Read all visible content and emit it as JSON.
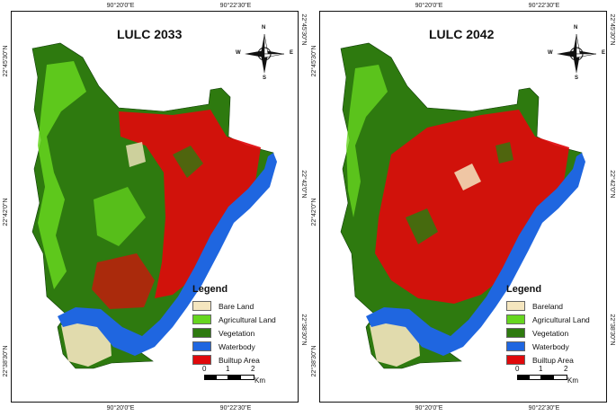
{
  "maps": [
    {
      "id": "left",
      "title": "LULC 2033",
      "top_ticks": [
        "90°20'0\"E",
        "90°22'30\"E"
      ],
      "bottom_ticks": [
        "90°20'0\"E",
        "90°22'30\"E"
      ],
      "left_ticks": [
        "22°45'30\"N",
        "22°42'0\"N",
        "22°38'30\"N"
      ],
      "right_ticks": [
        "22°45'30\"N",
        "22°42'0\"N",
        "22°38'30\"N"
      ],
      "compass": {
        "n": "N",
        "s": "S",
        "e": "E",
        "w": "W"
      },
      "legend": {
        "title": "Legend",
        "items": [
          {
            "label": "Bare Land",
            "color": "#f5e6bf"
          },
          {
            "label": "Agricultural Land",
            "color": "#66d61f"
          },
          {
            "label": "Vegetation",
            "color": "#2e7a0f"
          },
          {
            "label": "Waterbody",
            "color": "#1f66e0"
          },
          {
            "label": "Builtup Area",
            "color": "#e0090b"
          }
        ]
      },
      "scale": {
        "labels": [
          "0",
          "1",
          "2"
        ],
        "unit": "Km"
      }
    },
    {
      "id": "right",
      "title": "LULC 2042",
      "top_ticks": [
        "90°20'0\"E",
        "90°22'30\"E"
      ],
      "bottom_ticks": [
        "90°20'0\"E",
        "90°22'30\"E"
      ],
      "left_ticks": [
        "22°45'30\"N",
        "22°42'0\"N",
        "22°38'30\"N"
      ],
      "right_ticks": [
        "22°45'30\"N",
        "22°42'0\"N",
        "22°38'30\"N"
      ],
      "compass": {
        "n": "N",
        "s": "S",
        "e": "E",
        "w": "W"
      },
      "legend": {
        "title": "Legend",
        "items": [
          {
            "label": "Bareland",
            "color": "#f5e6bf"
          },
          {
            "label": "Agricultural Land",
            "color": "#66d61f"
          },
          {
            "label": "Vegetation",
            "color": "#2e7a0f"
          },
          {
            "label": "Waterbody",
            "color": "#1f66e0"
          },
          {
            "label": "Builtup Area",
            "color": "#e0090b"
          }
        ]
      },
      "scale": {
        "labels": [
          "0",
          "1",
          "2"
        ],
        "unit": "Km"
      }
    }
  ]
}
